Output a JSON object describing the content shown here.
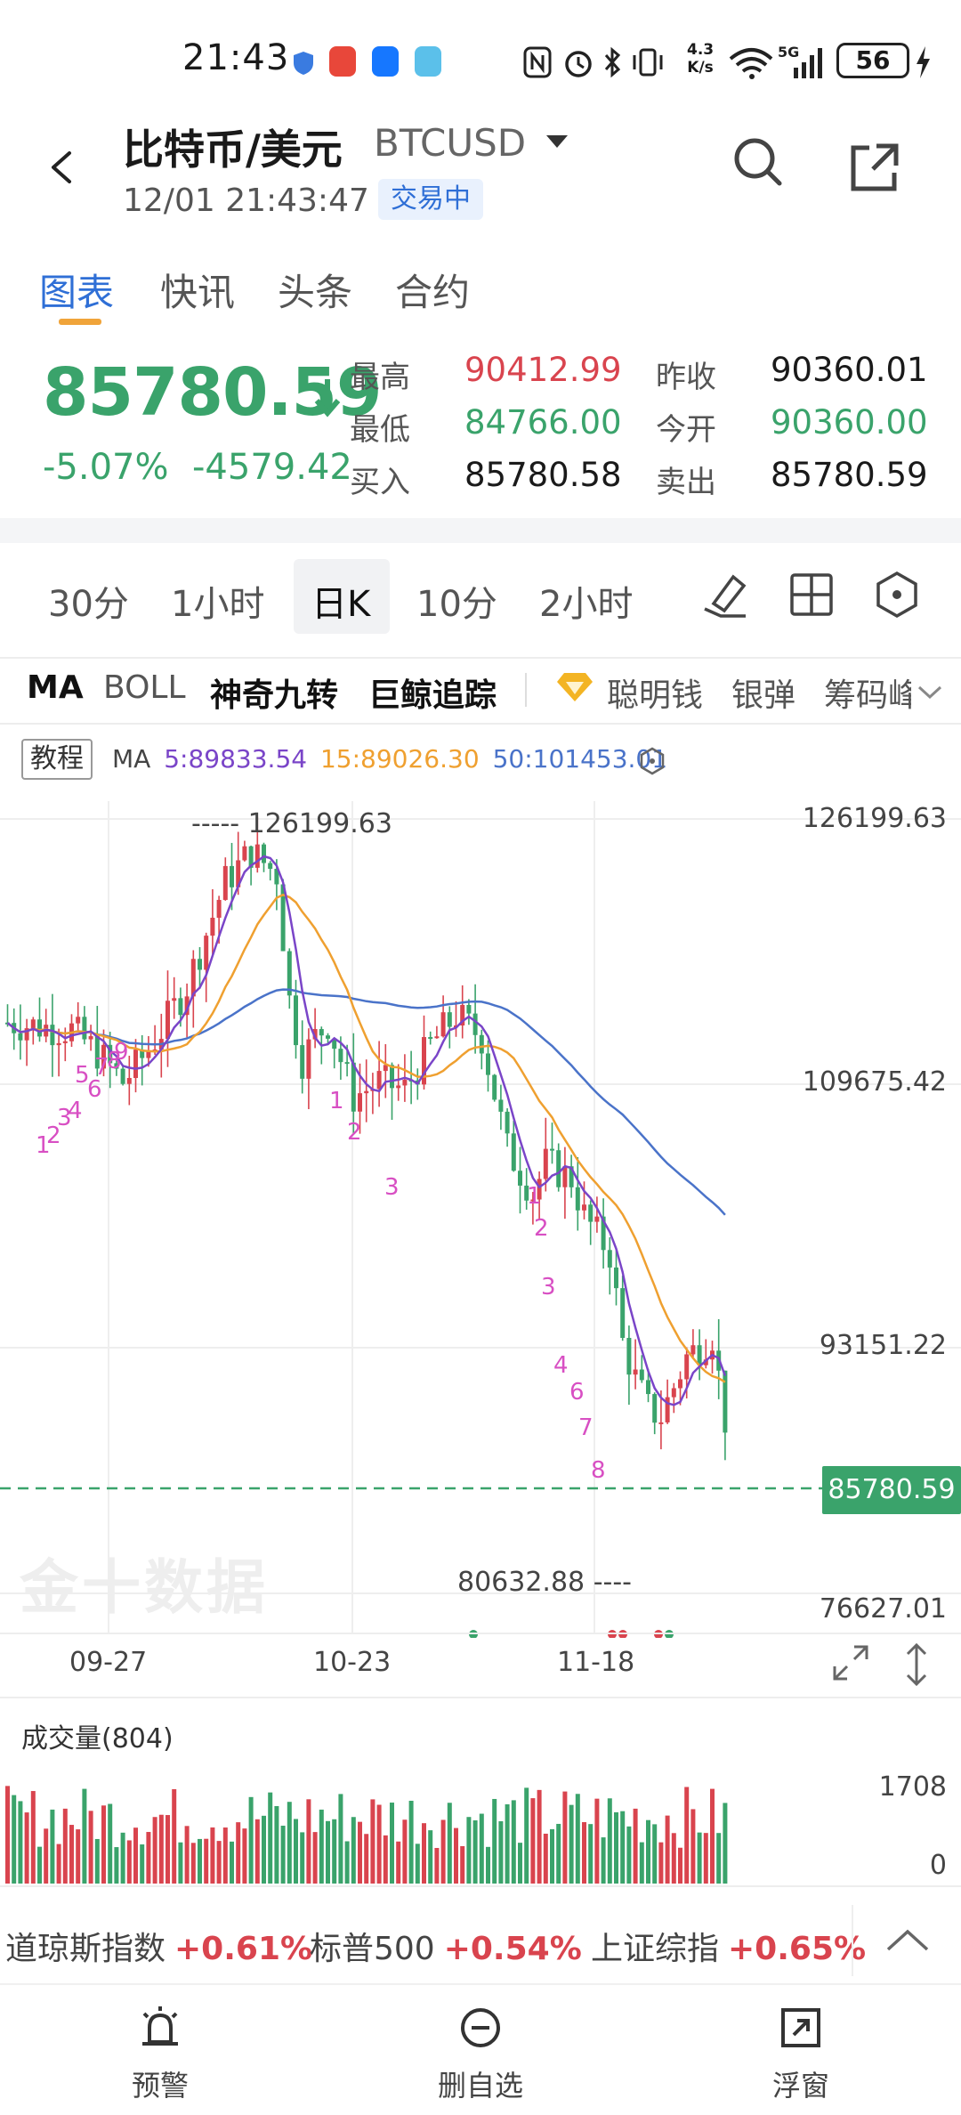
{
  "status_bar": {
    "time": "21:43",
    "net_speed_value": "4.3",
    "net_speed_unit": "K/s",
    "battery": "56"
  },
  "header": {
    "title_cn": "比特币/美元",
    "title_code": "BTCUSD",
    "datetime": "12/01 21:43:47",
    "status": "交易中"
  },
  "tabs": [
    {
      "label": "图表"
    },
    {
      "label": "快讯"
    },
    {
      "label": "头条"
    },
    {
      "label": "合约"
    }
  ],
  "quote": {
    "price": "85780.59",
    "change_pct": "-5.07%",
    "change_abs": "-4579.42",
    "high_label": "最高",
    "high": "90412.99",
    "low_label": "最低",
    "low": "84766.00",
    "bid_label": "买入",
    "bid": "85780.58",
    "prev_close_label": "昨收",
    "prev_close": "90360.01",
    "open_label": "今开",
    "open": "90360.00",
    "ask_label": "卖出",
    "ask": "85780.59"
  },
  "periods": [
    {
      "label": "30分"
    },
    {
      "label": "1小时"
    },
    {
      "label": "日K"
    },
    {
      "label": "10分"
    },
    {
      "label": "2小时"
    }
  ],
  "indicators": {
    "ma": "MA",
    "boll": "BOLL",
    "nine": "神奇九转",
    "whale": "巨鲸追踪",
    "smart_money": "聪明钱",
    "silver": "银弹",
    "chips": "筹码峰"
  },
  "chart": {
    "tutorial": "教程",
    "ma_label": "MA",
    "ma5": "5:89833.54",
    "ma15": "15:89026.30",
    "ma50": "50:101453.01",
    "axis": [
      "126199.63",
      "109675.42",
      "93151.22",
      "76627.01"
    ],
    "last_price": "85780.59",
    "high_marker": "126199.63",
    "low_marker": "80632.88",
    "dates": [
      "09-27",
      "10-23",
      "11-18"
    ],
    "watermark": "金十数据",
    "colors": {
      "up": "#d9444e",
      "down": "#3aa36b",
      "ma5": "#7a45c8",
      "ma15": "#efa030",
      "ma50": "#4a73c9"
    }
  },
  "volume": {
    "title": "成交量(804)",
    "axis_top": "1708",
    "axis_bottom": "0"
  },
  "ticker": [
    {
      "name": "道琼斯指数",
      "value": "+0.61%"
    },
    {
      "name": "标普500",
      "value": "+0.54%"
    },
    {
      "name": "上证综指",
      "value": "+0.65%"
    }
  ],
  "nav": [
    {
      "label": "预警",
      "icon": "alarm-icon"
    },
    {
      "label": "删自选",
      "icon": "minus-circle-icon"
    },
    {
      "label": "浮窗",
      "icon": "float-window-icon"
    }
  ]
}
